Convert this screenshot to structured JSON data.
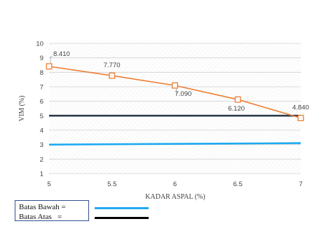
{
  "chart_data": {
    "type": "line",
    "xlabel": "KADAR ASPAL (%)",
    "ylabel": "VIM (%)",
    "xlim": [
      5,
      7
    ],
    "ylim": [
      1,
      10
    ],
    "x_ticks": [
      "5",
      "5.5",
      "6",
      "6.5",
      "7"
    ],
    "y_ticks": [
      "1",
      "2",
      "3",
      "4",
      "5",
      "6",
      "7",
      "8",
      "9",
      "10"
    ],
    "grid": "horizontal",
    "series": [
      {
        "role": "vim",
        "color": "#ed7d31",
        "marker": "open-square",
        "x": [
          5,
          5.5,
          6,
          6.5,
          7
        ],
        "y": [
          8.41,
          7.77,
          7.09,
          6.12,
          4.84
        ],
        "labels": [
          "8.410",
          "7.770",
          "7.090",
          "6.120",
          "4.840"
        ]
      },
      {
        "role": "batas-atas",
        "color": "#2e3d4f",
        "x": [
          5,
          7
        ],
        "y": [
          5,
          5
        ]
      },
      {
        "role": "batas-bawah",
        "color": "#1eaaf1",
        "x": [
          5,
          7
        ],
        "y": [
          3,
          3.1
        ]
      }
    ]
  },
  "legend": {
    "bawah_label": "Batas Bawah =",
    "bawah_color": "#1eaaf1",
    "atas_label": "Batas Atas   =",
    "atas_color": "#000000"
  }
}
